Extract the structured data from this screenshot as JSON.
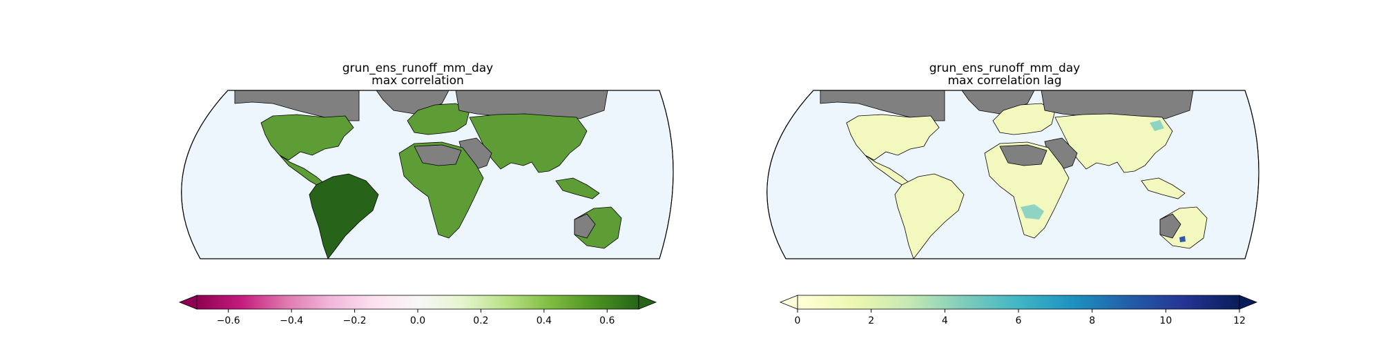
{
  "panels": [
    {
      "title": "grun_ens_runoff_mm_day",
      "subtitle": "max correlation",
      "colorbar": {
        "ticks": [
          "−0.6",
          "−0.4",
          "−0.2",
          "0.0",
          "0.2",
          "0.4",
          "0.6"
        ],
        "tick_values": [
          -0.6,
          -0.4,
          -0.2,
          0.0,
          0.2,
          0.4,
          0.6
        ],
        "range": [
          -0.7,
          0.7
        ],
        "extend": "both",
        "colormap": "PiYG",
        "stops": [
          "#8e0152",
          "#c51b7d",
          "#de77ae",
          "#f1b6da",
          "#fde0ef",
          "#f7f7f7",
          "#e6f5d0",
          "#b8e186",
          "#7fbc41",
          "#4d9221",
          "#276419"
        ]
      },
      "land_color": "#5e9c36"
    },
    {
      "title": "grun_ens_runoff_mm_day",
      "subtitle": "max correlation lag",
      "colorbar": {
        "ticks": [
          "0",
          "2",
          "4",
          "6",
          "8",
          "10",
          "12"
        ],
        "tick_values": [
          0,
          2,
          4,
          6,
          8,
          10,
          12
        ],
        "range": [
          0,
          12
        ],
        "extend": "both",
        "colormap": "YlGnBu",
        "stops": [
          "#ffffd9",
          "#edf8b1",
          "#c7e9b4",
          "#7fcdbb",
          "#41b6c4",
          "#1d91c0",
          "#225ea8",
          "#253494",
          "#081d58"
        ]
      },
      "land_color": "#f3f8bf"
    }
  ],
  "colors": {
    "ocean": "#eef6fd",
    "masked_land": "#808080",
    "outline": "#000000"
  }
}
